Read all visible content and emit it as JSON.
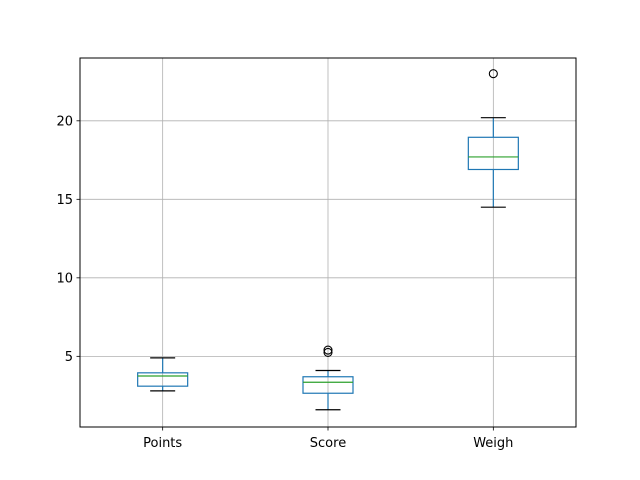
{
  "chart_data": {
    "type": "box",
    "title": "",
    "xlabel": "",
    "ylabel": "",
    "categories": [
      "Points",
      "Score",
      "Weigh"
    ],
    "ylim": [
      0.5,
      24.0
    ],
    "yticks": [
      5,
      10,
      15,
      20
    ],
    "grid": true,
    "boxes": [
      {
        "name": "Points",
        "whisker_low": 2.8,
        "q1": 3.1,
        "median": 3.75,
        "q3": 3.95,
        "whisker_high": 4.9,
        "outliers": []
      },
      {
        "name": "Score",
        "whisker_low": 1.6,
        "q1": 2.65,
        "median": 3.35,
        "q3": 3.7,
        "whisker_high": 4.1,
        "outliers": [
          5.25,
          5.4
        ]
      },
      {
        "name": "Weigh",
        "whisker_low": 14.5,
        "q1": 16.9,
        "median": 17.7,
        "q3": 18.95,
        "whisker_high": 20.2,
        "outliers": [
          23.0
        ]
      }
    ],
    "colors": {
      "box": "#1f77b4",
      "median": "#2ca02c",
      "whisker": "#1f77b4",
      "cap": "#000000",
      "grid": "#b0b0b0"
    }
  }
}
